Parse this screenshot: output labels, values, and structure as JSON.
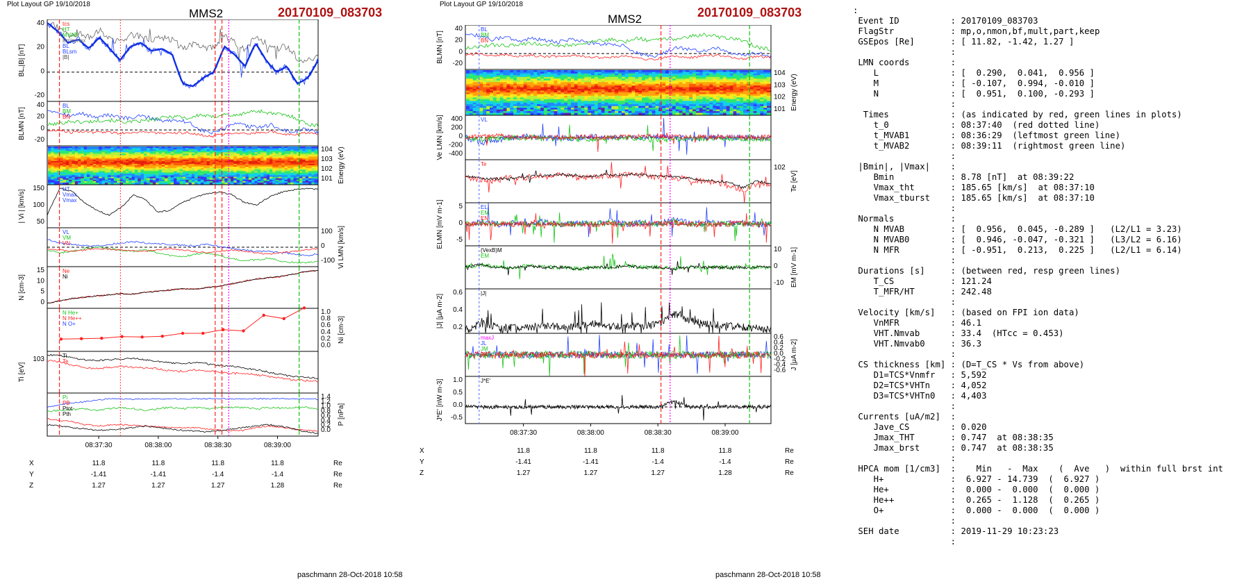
{
  "left": {
    "layout_label": "Plot Layout GP 19/10/2018",
    "spacecraft": "MMS2",
    "event": "20170109_083703",
    "footer": "paschmann 28-Oct-2018 10:58",
    "time_ticks": [
      "08:37:30",
      "08:38:00",
      "08:38:30",
      "08:39:00"
    ],
    "positions": [
      {
        "label": "X",
        "values": [
          "11.8",
          "11.8",
          "11.8",
          "11.8"
        ],
        "unit": "Re"
      },
      {
        "label": "Y",
        "values": [
          "-1.41",
          "-1.41",
          "-1.4",
          "-1.4"
        ],
        "unit": "Re"
      },
      {
        "label": "Z",
        "values": [
          "1.27",
          "1.27",
          "1.27",
          "1.28"
        ],
        "unit": "Re"
      }
    ],
    "panels": [
      {
        "ylabel": "B_L,|B| [nT]",
        "ticks": [
          "40",
          "20",
          "0",
          "-20"
        ],
        "legend": [
          "t_cs",
          "HT",
          "MVAB",
          "B_minmax",
          "B_L",
          "B_Lsm",
          "|B|"
        ]
      },
      {
        "ylabel": "B_LMN [nT]",
        "ticks": [
          "40",
          "20",
          "0",
          "-20"
        ],
        "legend": [
          "B_L",
          "B_M",
          "B_N"
        ]
      },
      {
        "ylabel": "Energy (eV)",
        "ticks": [
          "10^4",
          "10^3",
          "10^2",
          "10^1"
        ],
        "legend": []
      },
      {
        "ylabel": "| V_i | [km/s]",
        "ticks": [
          "150",
          "100",
          "50"
        ],
        "legend": [
          "HT",
          "Vmax",
          "Vmax"
        ]
      },
      {
        "ylabel": "V_i LMN [km/s]",
        "ticks": [
          "100",
          "0",
          "-100"
        ],
        "legend": [
          "V_L",
          "V_M",
          "V_N"
        ]
      },
      {
        "ylabel": "N [cm^-3]",
        "ticks": [
          "15",
          "10",
          "5",
          "0"
        ],
        "legend": [
          "Ne",
          "Ni"
        ]
      },
      {
        "ylabel": "N_i [cm^-3]",
        "ticks": [
          "1.0",
          "0.8",
          "0.6",
          "0.4",
          "0.2",
          "0.0"
        ],
        "legend": [
          "N He+",
          "N He++",
          "N O+"
        ]
      },
      {
        "ylabel": "T_i [eV]",
        "ticks": [
          "10^3"
        ],
        "legend": [
          "T_i",
          "T_e"
        ]
      },
      {
        "ylabel": "P [nPa]",
        "ticks": [
          "1.4",
          "1.2",
          "1.0",
          "0.8",
          "0.6",
          "0.4",
          "0.2",
          "0.0"
        ],
        "legend": [
          "P_i",
          "P_B",
          "P_tot",
          "P_th"
        ]
      }
    ]
  },
  "middle": {
    "layout_label": "Plot Layout GP 19/10/2018",
    "spacecraft": "MMS2",
    "event": "20170109_083703",
    "footer": "paschmann 28-Oct-2018 10:58",
    "time_ticks": [
      "08:37:30",
      "08:38:00",
      "08:38:30",
      "08:39:00"
    ],
    "positions": [
      {
        "label": "X",
        "values": [
          "11.8",
          "11.8",
          "11.8",
          "11.8"
        ],
        "unit": "Re"
      },
      {
        "label": "Y",
        "values": [
          "-1.41",
          "-1.41",
          "-1.4",
          "-1.4"
        ],
        "unit": "Re"
      },
      {
        "label": "Z",
        "values": [
          "1.27",
          "1.27",
          "1.27",
          "1.28"
        ],
        "unit": "Re"
      }
    ],
    "panels": [
      {
        "ylabel": "B_LMN [nT]",
        "ticks": [
          "40",
          "20",
          "0",
          "-20"
        ],
        "legend": [
          "B_L",
          "B_M",
          "B_N"
        ]
      },
      {
        "ylabel": "Energy (eV)",
        "ticks": [
          "10^4",
          "10^3",
          "10^2",
          "10^1"
        ],
        "legend": []
      },
      {
        "ylabel": "V_e LMN [km/s]",
        "ticks": [
          "400",
          "200",
          "0",
          "-200",
          "-400"
        ],
        "legend": [
          "V_L"
        ]
      },
      {
        "ylabel": "T_e [eV]",
        "ticks": [
          "10^2"
        ],
        "legend": [
          "T_e"
        ]
      },
      {
        "ylabel": "E_LMN [mV m^-1]",
        "ticks": [
          "5",
          "0",
          "-5"
        ],
        "legend": [
          "E_L",
          "E_M",
          "E_N"
        ]
      },
      {
        "ylabel": "E_M [mV m^-1]",
        "ticks": [
          "10",
          "0",
          "-10"
        ],
        "legend": [
          "(VexB)_M",
          "E_M"
        ]
      },
      {
        "ylabel": "|J| [μA m^-2]",
        "ticks": [
          "0.6",
          "0.4",
          "0.2"
        ],
        "legend": [
          "|J|"
        ]
      },
      {
        "ylabel": "J [μA m^-2]",
        "ticks": [
          "0.6",
          "0.4",
          "0.2",
          "0.0",
          "-0.2",
          "-0.4",
          "-0.6"
        ],
        "legend": [
          "maxJ",
          "J_L",
          "J_M",
          "J_N"
        ]
      },
      {
        "ylabel": "J*E' [nW m^-3]",
        "ticks": [
          "1.0",
          "0.5",
          "0.0",
          "-0.5"
        ],
        "legend": [
          "J*E'"
        ]
      }
    ]
  },
  "summary": {
    "rows": [
      [
        ":",
        "",
        ""
      ],
      [
        "",
        "Event ID",
        ": 20170109_083703"
      ],
      [
        "",
        "FlagStr",
        ": mp,o,nmon,bf,mult,part,keep"
      ],
      [
        "",
        "GSEpos [Re]",
        ": [ 11.82, -1.42, 1.27 ]"
      ],
      [
        "",
        "",
        ":"
      ],
      [
        "",
        "LMN coords",
        ":"
      ],
      [
        "",
        "   L",
        ": [  0.290,  0.041,  0.956 ]"
      ],
      [
        "",
        "   M",
        ": [ -0.107,  0.994, -0.010 ]"
      ],
      [
        "",
        "   N",
        ": [  0.951,  0.100, -0.293 ]"
      ],
      [
        "",
        "",
        ":"
      ],
      [
        "",
        " Times",
        ": (as indicated by red, green lines in plots)"
      ],
      [
        "",
        "   t_0",
        ": 08:37:40  (red dotted line)"
      ],
      [
        "",
        "   t_MVAB1",
        ": 08:36:29  (leftmost green line)"
      ],
      [
        "",
        "   t_MVAB2",
        ": 08:39:11  (rightmost green line)"
      ],
      [
        "",
        "",
        ":"
      ],
      [
        "",
        "|Bmin|, |Vmax|",
        ":"
      ],
      [
        "",
        "   Bmin",
        ": 8.78 [nT]  at 08:39:22"
      ],
      [
        "",
        "   Vmax_tht",
        ": 185.65 [km/s]  at 08:37:10"
      ],
      [
        "",
        "   Vmax_tburst",
        ": 185.65 [km/s]  at 08:37:10"
      ],
      [
        "",
        "",
        ":"
      ],
      [
        "",
        "Normals",
        ":"
      ],
      [
        "",
        "   N MVAB",
        ": [  0.956,  0.045, -0.289 ]   (L2/L1 = 3.23)"
      ],
      [
        "",
        "   N MVAB0",
        ": [  0.946, -0.047, -0.321 ]   (L3/L2 = 6.16)"
      ],
      [
        "",
        "   N MFR",
        ": [ -0.951,  0.213,  0.225 ]   (L2/L1 = 6.14)"
      ],
      [
        "",
        "",
        ":"
      ],
      [
        "",
        "Durations [s]",
        ": (between red, resp green lines)"
      ],
      [
        "",
        "   T_CS",
        ": 121.24"
      ],
      [
        "",
        "   T_MFR/HT",
        ": 242.48"
      ],
      [
        "",
        "",
        ":"
      ],
      [
        "",
        "Velocity [km/s]",
        ": (based on FPI ion data)"
      ],
      [
        "",
        "   VnMFR",
        ": 46.1"
      ],
      [
        "",
        "   VHT.Nmvab",
        ": 33.4  (HTcc = 0.453)"
      ],
      [
        "",
        "   VHT.Nmvab0",
        ": 36.3"
      ],
      [
        "",
        "",
        ":"
      ],
      [
        "",
        "CS thickness [km]",
        ": (D=T_CS * Vs from above)"
      ],
      [
        "",
        "   D1=TCS*Vnmfr",
        ": 5,592"
      ],
      [
        "",
        "   D2=TCS*VHTn",
        ": 4,052"
      ],
      [
        "",
        "   D3=TCS*VHTn0",
        ": 4,403"
      ],
      [
        "",
        "",
        ":"
      ],
      [
        "",
        "Currents [uA/m2]",
        ":"
      ],
      [
        "",
        "   Jave_CS",
        ": 0.020"
      ],
      [
        "",
        "   Jmax_THT",
        ": 0.747  at 08:38:35"
      ],
      [
        "",
        "   Jmax_brst",
        ": 0.747  at 08:38:35"
      ],
      [
        "",
        "",
        ":"
      ],
      [
        "",
        "HPCA mom [1/cm3]",
        ":    Min   -  Max    (  Ave   )  within full brst int"
      ],
      [
        "",
        "   H+",
        ":  6.927 - 14.739  (  6.927 )"
      ],
      [
        "",
        "   He+",
        ":  0.000 -  0.000  (  0.000 )"
      ],
      [
        "",
        "   He++",
        ":  0.265 -  1.128  (  0.265 )"
      ],
      [
        "",
        "   O+",
        ":  0.000 -  0.000  (  0.000 )"
      ],
      [
        "",
        "",
        ":"
      ],
      [
        "",
        "SEH date",
        ": 2019-11-29 10:23:23"
      ],
      [
        "",
        "",
        ":"
      ]
    ]
  },
  "colors": {
    "event": "#b01010",
    "L": "#1f3fff",
    "M": "#18c418",
    "N": "#ff2020",
    "black": "#000000",
    "magenta": "#ff00ff",
    "green_line": "#10c010",
    "red_line": "#ff2020",
    "guide": "#6a7cff"
  },
  "chart_data": [
    {
      "type": "line",
      "title": "MMS2",
      "subtitle": "20170109_083703",
      "description_panels": "stacked time-series panels 08:36:55-08:39:27",
      "x_ticks": [
        "08:37:30",
        "08:38:00",
        "08:38:30",
        "08:39:00"
      ],
      "panels": [
        {
          "ylabel": "B_L,|B| [nT]",
          "ylim": [
            -25,
            45
          ],
          "series": [
            {
              "name": "B_Lsm",
              "values": [
                42,
                35,
                25,
                28,
                20,
                30,
                20,
                10,
                22,
                25,
                18,
                20,
                15,
                -10,
                -12,
                -5,
                0,
                22,
                15,
                5,
                25,
                10,
                0,
                5,
                -10,
                -5,
                10
              ]
            },
            {
              "name": "|B|",
              "values": [
                42,
                38,
                30,
                34,
                30,
                36,
                28,
                26,
                33,
                30,
                28,
                30,
                28,
                20,
                25,
                22,
                20,
                30,
                25,
                20,
                30,
                25,
                20,
                22,
                12,
                10,
                14
              ]
            }
          ]
        },
        {
          "ylabel": "B_LMN [nT]",
          "ylim": [
            -25,
            45
          ]
        },
        {
          "ylabel": "Energy (eV)",
          "type": "heatmap"
        },
        {
          "ylabel": "| V_i | [km/s]",
          "ylim": [
            20,
            190
          ]
        },
        {
          "ylabel": "V_i LMN [km/s]",
          "ylim": [
            -140,
            140
          ]
        },
        {
          "ylabel": "N [cm^-3]",
          "ylim": [
            0,
            17
          ]
        },
        {
          "ylabel": "N_i [cm^-3]",
          "ylim": [
            0,
            1.05
          ],
          "series": [
            {
              "name": "N He++",
              "values": [
                0.3,
                0.31,
                0.32,
                0.36,
                0.35,
                0.37,
                0.44,
                0.44,
                0.53,
                0.5,
                0.88,
                0.8,
                1.06
              ]
            }
          ]
        },
        {
          "ylabel": "T_i [eV]"
        },
        {
          "ylabel": "P [nPa]",
          "ylim": [
            0,
            1.5
          ]
        }
      ]
    },
    {
      "type": "line",
      "title": "MMS2",
      "subtitle": "20170109_083703",
      "x_ticks": [
        "08:37:30",
        "08:38:00",
        "08:38:30",
        "08:39:00"
      ],
      "panels": [
        {
          "ylabel": "B_LMN [nT]",
          "ylim": [
            -25,
            45
          ]
        },
        {
          "ylabel": "Energy (eV)",
          "type": "heatmap"
        },
        {
          "ylabel": "V_e LMN [km/s]",
          "ylim": [
            -450,
            450
          ]
        },
        {
          "ylabel": "T_e [eV]"
        },
        {
          "ylabel": "E_LMN [mV m^-1]",
          "ylim": [
            -8,
            8
          ]
        },
        {
          "ylabel": "E_M [mV m^-1]",
          "ylim": [
            -15,
            15
          ]
        },
        {
          "ylabel": "|J| [μA m^-2]",
          "ylim": [
            0,
            0.7
          ]
        },
        {
          "ylabel": "J [μA m^-2]",
          "ylim": [
            -0.7,
            0.7
          ]
        },
        {
          "ylabel": "J*E' [nW m^-3]",
          "ylim": [
            -0.6,
            1.1
          ]
        }
      ]
    }
  ]
}
